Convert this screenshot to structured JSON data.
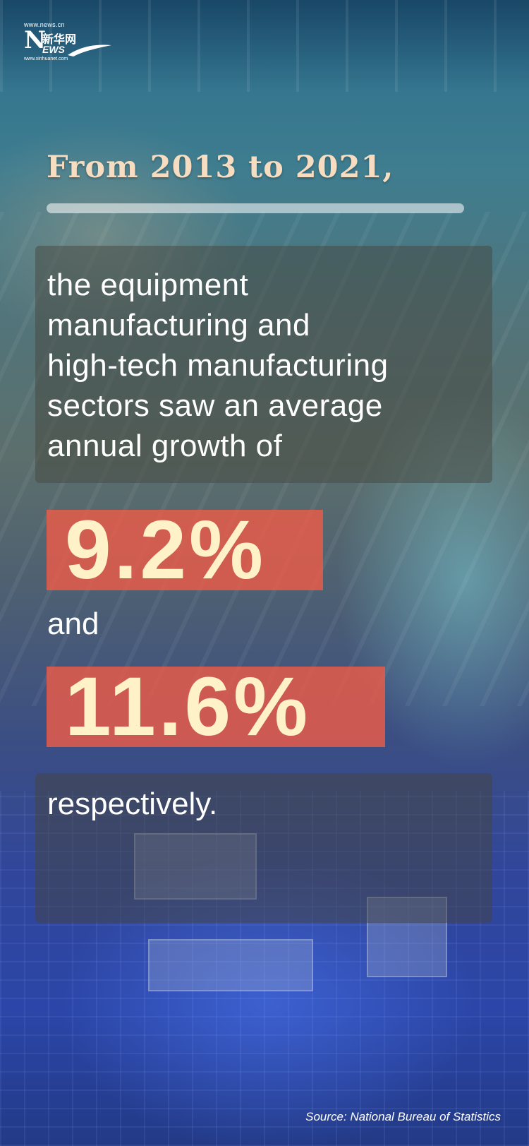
{
  "logo": {
    "url_text": "www.news.cn",
    "mark_letter": "N",
    "chinese_name": "新华网",
    "mark_suffix": "EWS",
    "sub_text": "www.xinhuanet.com"
  },
  "heading": "From 2013 to 2021,",
  "body_lines": [
    "the equipment",
    "manufacturing and",
    "high-tech manufacturing",
    "sectors saw an average",
    "annual growth of"
  ],
  "stats": {
    "first": "9.2%",
    "connector": "and",
    "second": "11.6%"
  },
  "closing": "respectively.",
  "source": "Source: National Bureau of Statistics",
  "colors": {
    "heading": "#f6dcc0",
    "stat_bg": "#ec5c48",
    "stat_text": "#fff2c8"
  }
}
